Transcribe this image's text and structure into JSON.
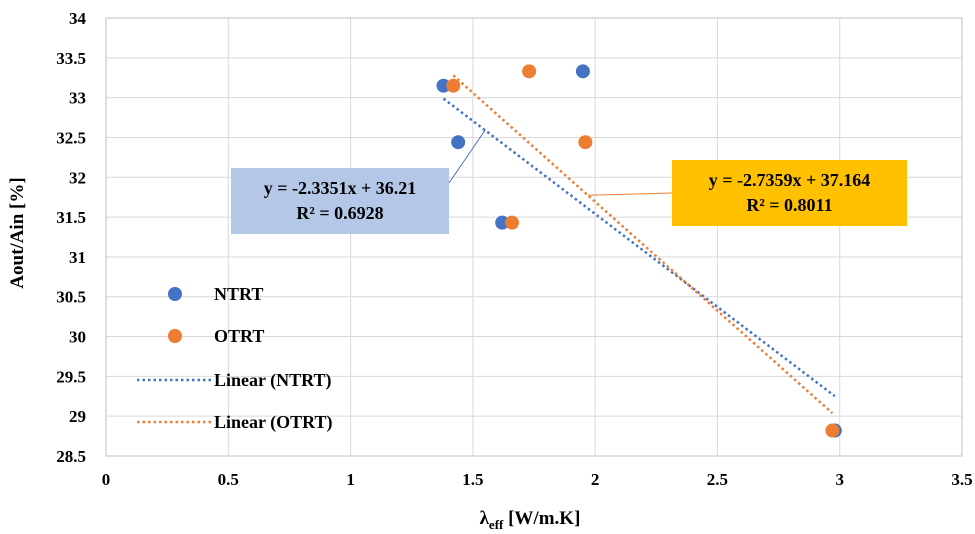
{
  "chart_data": {
    "type": "scatter",
    "title": "",
    "xlabel": "λ",
    "xlabel_sub": "eff",
    "xlabel_unit": " [W/m.K]",
    "ylabel": "Aout/Ain [%]",
    "xlim": [
      0,
      3.5
    ],
    "ylim": [
      28.5,
      34
    ],
    "x_ticks": [
      0,
      0.5,
      1,
      1.5,
      2,
      2.5,
      3,
      3.5
    ],
    "x_tick_labels": [
      "0",
      "0.5",
      "1",
      "1.5",
      "2",
      "2.5",
      "3",
      "3.5"
    ],
    "y_ticks": [
      28.5,
      29,
      29.5,
      30,
      30.5,
      31,
      31.5,
      32,
      32.5,
      33,
      33.5,
      34
    ],
    "y_tick_labels": [
      "28.5",
      "29",
      "29.5",
      "30",
      "30.5",
      "31",
      "31.5",
      "32",
      "32.5",
      "33",
      "33.5",
      "34"
    ],
    "grid": true,
    "legend_position": "left",
    "series": [
      {
        "name": "NTRT",
        "color": "#4472C4",
        "points": [
          [
            1.38,
            33.15
          ],
          [
            1.95,
            33.33
          ],
          [
            1.44,
            32.44
          ],
          [
            1.62,
            31.43
          ],
          [
            2.98,
            28.82
          ]
        ]
      },
      {
        "name": "OTRT",
        "color": "#ED7D31",
        "points": [
          [
            1.42,
            33.15
          ],
          [
            1.73,
            33.33
          ],
          [
            1.96,
            32.44
          ],
          [
            1.66,
            31.43
          ],
          [
            2.97,
            28.82
          ]
        ]
      }
    ],
    "trendlines": [
      {
        "name": "Linear (NTRT)",
        "color": "#4472C4",
        "slope": -2.3351,
        "intercept": 36.21,
        "x_range": [
          1.38,
          2.98
        ],
        "equation": "y = -2.3351x + 36.21",
        "r2": "R² = 0.6928",
        "box_color": "#B4C7E7"
      },
      {
        "name": "Linear (OTRT)",
        "color": "#ED7D31",
        "slope": -2.7359,
        "intercept": 37.164,
        "x_range": [
          1.42,
          2.97
        ],
        "equation": "y = -2.7359x + 37.164",
        "r2": "R² = 0.8011",
        "box_color": "#FFC000"
      }
    ]
  }
}
